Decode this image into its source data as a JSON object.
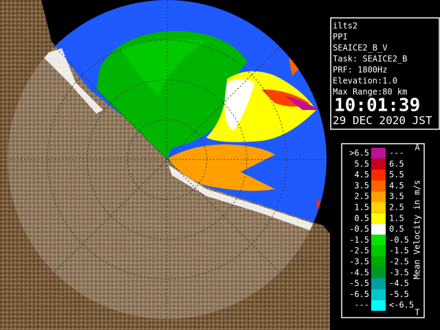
{
  "info": {
    "lines": [
      "ilts2",
      "PPI",
      "SEAICE2_B_V",
      "Task: SEAICE2_B",
      "PRF: 1800Hz",
      "Elevation:1.0",
      "Max Range:80 km"
    ],
    "time": "10:01:39",
    "date": "29 DEC 2020 JST"
  },
  "legend": {
    "title": "Mean Velocity in m/s",
    "top_mark": "A",
    "bottom_mark": "T",
    "rows": [
      {
        "left": ">6.5",
        "right": "---",
        "color": "#c0109a"
      },
      {
        "left": "5.5",
        "right": "6.5",
        "color": "#c8001e"
      },
      {
        "left": "4.5",
        "right": "5.5",
        "color": "#ff2800"
      },
      {
        "left": "3.5",
        "right": "4.5",
        "color": "#ff6400"
      },
      {
        "left": "2.5",
        "right": "3.5",
        "color": "#ffa000"
      },
      {
        "left": "1.5",
        "right": "2.5",
        "color": "#ffd200"
      },
      {
        "left": "0.5",
        "right": "1.5",
        "color": "#ffff00"
      },
      {
        "left": "-0.5",
        "right": "0.5",
        "color": "#ffffff"
      },
      {
        "left": "-1.5",
        "right": "-0.5",
        "color": "#00e600"
      },
      {
        "left": "-2.5",
        "right": "-1.5",
        "color": "#00c800"
      },
      {
        "left": "-3.5",
        "right": "-2.5",
        "color": "#00aa00"
      },
      {
        "left": "-4.5",
        "right": "-3.5",
        "color": "#009628"
      },
      {
        "left": "-5.5",
        "right": "-4.5",
        "color": "#00a0a0"
      },
      {
        "left": "-6.5",
        "right": "-5.5",
        "color": "#00c8c8"
      },
      {
        "left": "---",
        "right": "<-6.5",
        "color": "#00ffff"
      }
    ]
  }
}
